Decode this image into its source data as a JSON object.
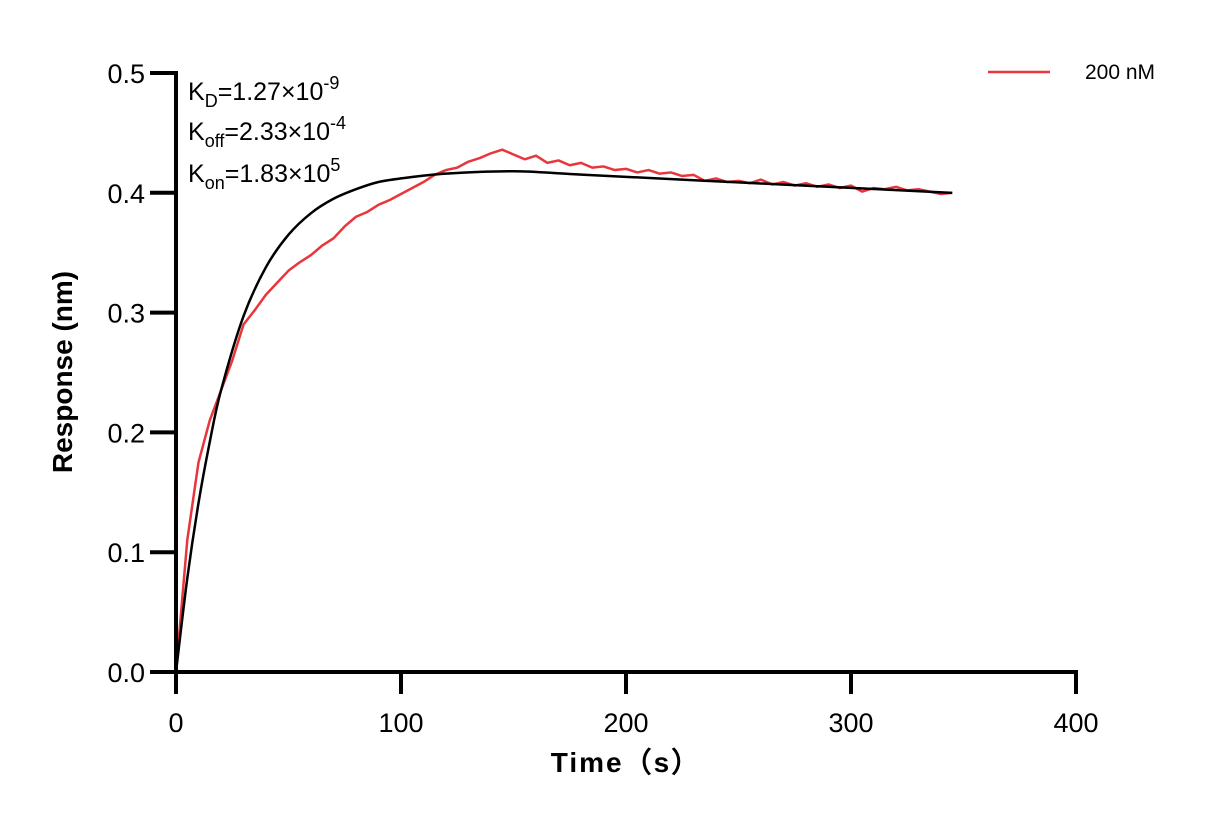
{
  "chart_data": {
    "type": "line",
    "xlabel": "Time（s）",
    "ylabel": "Response (nm)",
    "xlim": [
      0,
      400
    ],
    "ylim": [
      0,
      0.5
    ],
    "xticks": [
      "0",
      "100",
      "200",
      "300",
      "400"
    ],
    "yticks": [
      "0.0",
      "0.1",
      "0.2",
      "0.3",
      "0.4",
      "0.5"
    ],
    "grid": false,
    "legend_position": "top-right",
    "annotations": [
      {
        "main": "K",
        "sub": "D",
        "text": "=1.27×10",
        "sup": "-9"
      },
      {
        "main": "K",
        "sub": "off",
        "text": "=2.33×10",
        "sup": "-4"
      },
      {
        "main": "K",
        "sub": "on",
        "text": "=1.83×10",
        "sup": "5"
      }
    ],
    "series": [
      {
        "name": "200 nM",
        "color": "#e8363c",
        "x": [
          0,
          5,
          10,
          15,
          20,
          25,
          30,
          35,
          40,
          45,
          50,
          55,
          60,
          65,
          70,
          75,
          80,
          85,
          90,
          95,
          100,
          105,
          110,
          115,
          120,
          125,
          130,
          135,
          140,
          145,
          150,
          155,
          160,
          165,
          170,
          175,
          180,
          185,
          190,
          195,
          200,
          205,
          210,
          215,
          220,
          225,
          230,
          235,
          240,
          245,
          250,
          255,
          260,
          265,
          270,
          275,
          280,
          285,
          290,
          295,
          300,
          305,
          310,
          315,
          320,
          325,
          330,
          335,
          340,
          345
        ],
        "y": [
          0,
          0.11,
          0.175,
          0.21,
          0.235,
          0.26,
          0.29,
          0.302,
          0.315,
          0.325,
          0.335,
          0.342,
          0.348,
          0.356,
          0.362,
          0.372,
          0.38,
          0.384,
          0.39,
          0.394,
          0.399,
          0.404,
          0.409,
          0.415,
          0.419,
          0.421,
          0.426,
          0.429,
          0.433,
          0.436,
          0.432,
          0.428,
          0.431,
          0.425,
          0.427,
          0.423,
          0.425,
          0.421,
          0.422,
          0.419,
          0.42,
          0.417,
          0.419,
          0.416,
          0.417,
          0.414,
          0.415,
          0.41,
          0.412,
          0.409,
          0.41,
          0.408,
          0.411,
          0.407,
          0.409,
          0.406,
          0.408,
          0.405,
          0.407,
          0.404,
          0.406,
          0.401,
          0.404,
          0.403,
          0.405,
          0.402,
          0.403,
          0.401,
          0.399,
          0.4
        ]
      },
      {
        "color": "#000000",
        "x": [
          0,
          5,
          10,
          15,
          20,
          30,
          40,
          50,
          60,
          70,
          80,
          90,
          100,
          120,
          150,
          175,
          200,
          250,
          300,
          345
        ],
        "y": [
          0,
          0.078,
          0.141,
          0.192,
          0.235,
          0.297,
          0.338,
          0.365,
          0.383,
          0.395,
          0.403,
          0.409,
          0.412,
          0.416,
          0.418,
          0.4157,
          0.4133,
          0.4087,
          0.4041,
          0.3999
        ]
      }
    ]
  }
}
